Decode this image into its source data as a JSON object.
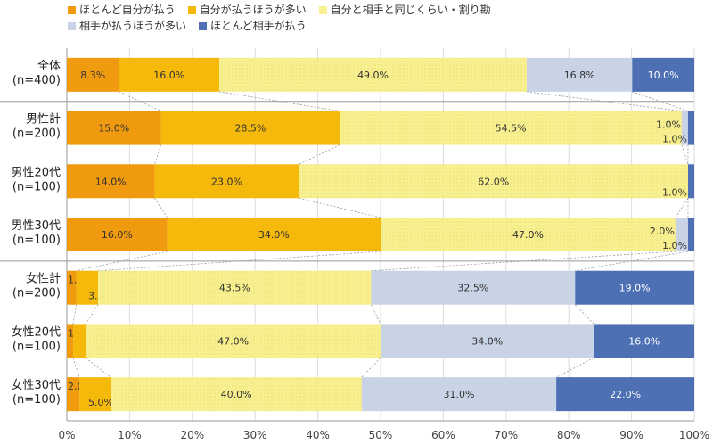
{
  "chart_data": {
    "type": "bar",
    "orientation": "horizontal",
    "stacked": "percent",
    "categories": [
      "全体\n(n=400)",
      "男性計\n(n=200)",
      "男性20代\n(n=100)",
      "男性30代\n(n=100)",
      "女性計\n(n=200)",
      "女性20代\n(n=100)",
      "女性30代\n(n=100)"
    ],
    "series": [
      {
        "name": "ほとんど自分が払う",
        "color": "#f09a10",
        "values": [
          8.3,
          15.0,
          14.0,
          16.0,
          1.5,
          1.0,
          2.0
        ]
      },
      {
        "name": "自分が払うほうが多い",
        "color": "#f5b90c",
        "values": [
          16.0,
          28.5,
          23.0,
          34.0,
          3.5,
          2.0,
          5.0
        ]
      },
      {
        "name": "自分と相手と同じくらい・割り勘",
        "color": "#f8f090",
        "values": [
          49.0,
          54.5,
          62.0,
          47.0,
          43.5,
          47.0,
          40.0
        ]
      },
      {
        "name": "相手が払うほうが多い",
        "color": "#c9d3e6",
        "values": [
          16.8,
          1.0,
          0,
          2.0,
          32.5,
          34.0,
          31.0
        ]
      },
      {
        "name": "ほとんど相手が払う",
        "color": "#4d6fb3",
        "values": [
          10.0,
          1.0,
          1.0,
          1.0,
          19.0,
          16.0,
          22.0
        ]
      }
    ],
    "xlim": [
      0,
      100
    ],
    "x_ticks": [
      "0%",
      "10%",
      "20%",
      "30%",
      "40%",
      "50%",
      "60%",
      "70%",
      "80%",
      "90%",
      "100%"
    ],
    "grid": true,
    "legend": "top"
  }
}
